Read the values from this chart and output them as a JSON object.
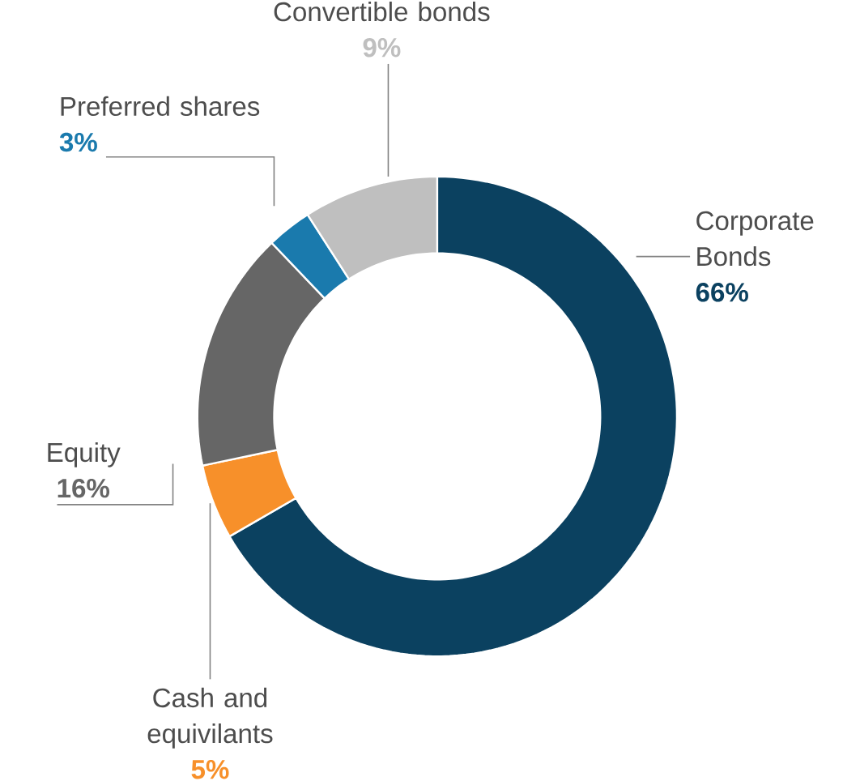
{
  "chart_data": {
    "type": "donut",
    "categories": [
      "Corporate Bonds",
      "Cash and equivilants",
      "Equity",
      "Preferred shares",
      "Convertible bonds"
    ],
    "values": [
      66,
      5,
      16,
      3,
      9
    ],
    "value_labels": [
      "66%",
      "5%",
      "16%",
      "3%",
      "9%"
    ],
    "colors": [
      "#0b4160",
      "#f7902a",
      "#666666",
      "#1a7aad",
      "#bfbfbf"
    ]
  }
}
